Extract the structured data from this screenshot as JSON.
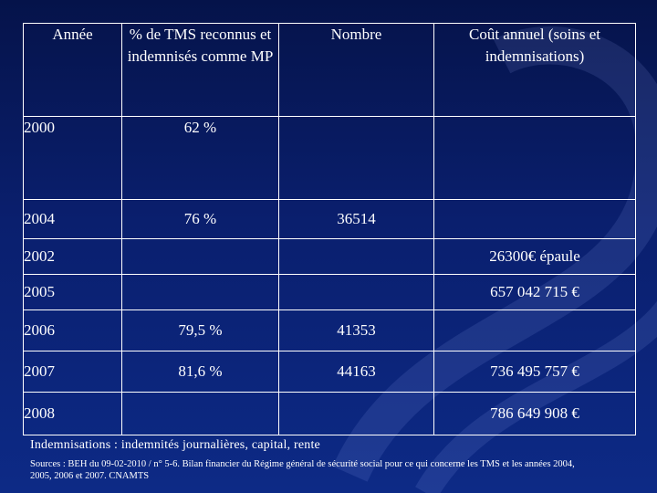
{
  "table": {
    "headers": [
      "Année",
      "% de TMS reconnus et indemnisés comme MP",
      "Nombre",
      "Coût annuel (soins et indemnisations)"
    ],
    "rows": [
      [
        "2000",
        "62 %",
        "",
        ""
      ],
      [
        "2004",
        "76 %",
        "36514",
        ""
      ],
      [
        "2002",
        "",
        "",
        "26300€ épaule"
      ],
      [
        "2005",
        "",
        "",
        "657 042 715 €"
      ],
      [
        "2006",
        "79,5 %",
        "41353",
        ""
      ],
      [
        "2007",
        "81,6 %",
        "44163",
        "736 495 757 €"
      ],
      [
        "2008",
        "",
        "",
        "786 649 908 €"
      ]
    ]
  },
  "footnote_main": "Indemnisations : indemnités journalières, capital, rente",
  "footnote_sources": "Sources : BEH du 09-02-2010 / n° 5-6. Bilan financier du Régime général de sécurité social pour ce qui concerne les TMS et les années 2004, 2005, 2006 et 2007. CNAMTS",
  "colors": {
    "background": "#0a1f6e",
    "text": "#ffffff",
    "border": "#ffffff"
  }
}
